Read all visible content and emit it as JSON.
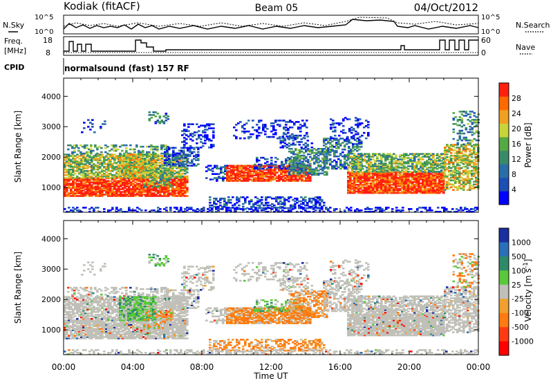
{
  "header": {
    "radar": "Kodiak (fitACF)",
    "beam": "Beam 05",
    "date": "04/Oct/2012"
  },
  "noise_panel": {
    "left_label": "N.Sky",
    "right_label": "N.Search",
    "tick_top": "10^5",
    "tick_bottom": "10^0"
  },
  "freq_panel": {
    "left_label_1": "Freq.",
    "left_label_2": "[MHz]",
    "right_label": "Nave",
    "ticks_left": [
      "18",
      "8"
    ],
    "ticks_right": [
      "60",
      "0"
    ]
  },
  "cpid_panel": {
    "label": "CPID",
    "text": "normalsound (fast) 157 RF"
  },
  "chart_data": [
    {
      "type": "heatmap",
      "panel": "power",
      "ylabel": "Slant Range [km]",
      "xlabel": "",
      "ylim": [
        180,
        4600
      ],
      "yticks": [
        "1000",
        "2000",
        "3000",
        "4000"
      ],
      "colorbar": {
        "label": "Power [dB]",
        "ticks": [
          "4",
          "8",
          "12",
          "16",
          "20",
          "24",
          "28"
        ],
        "colors": [
          "#0000ff",
          "#1c4fb4",
          "#2a6ea8",
          "#3a8a6a",
          "#55a844",
          "#c8d43a",
          "#f0a020",
          "#ff6a00",
          "#ff2010"
        ]
      }
    },
    {
      "type": "heatmap",
      "panel": "velocity",
      "ylabel": "Slant Range [km]",
      "xlabel": "Time UT",
      "ylim": [
        180,
        4600
      ],
      "yticks": [
        "1000",
        "2000",
        "3000",
        "4000"
      ],
      "xticks": [
        "00:00",
        "04:00",
        "08:00",
        "12:00",
        "16:00",
        "20:00",
        "00:00"
      ],
      "colorbar": {
        "label": "Velocity [m s^-1]",
        "ticks": [
          "1000",
          "500",
          "100",
          "25",
          "-25",
          "-100",
          "-500",
          "-1000"
        ],
        "colors": [
          "#1a2fa0",
          "#2a6fb8",
          "#2f8a6a",
          "#5ac83a",
          "#c0c0b8",
          "#f0a030",
          "#ff7a10",
          "#ff3a10",
          "#ff0000"
        ]
      }
    }
  ]
}
